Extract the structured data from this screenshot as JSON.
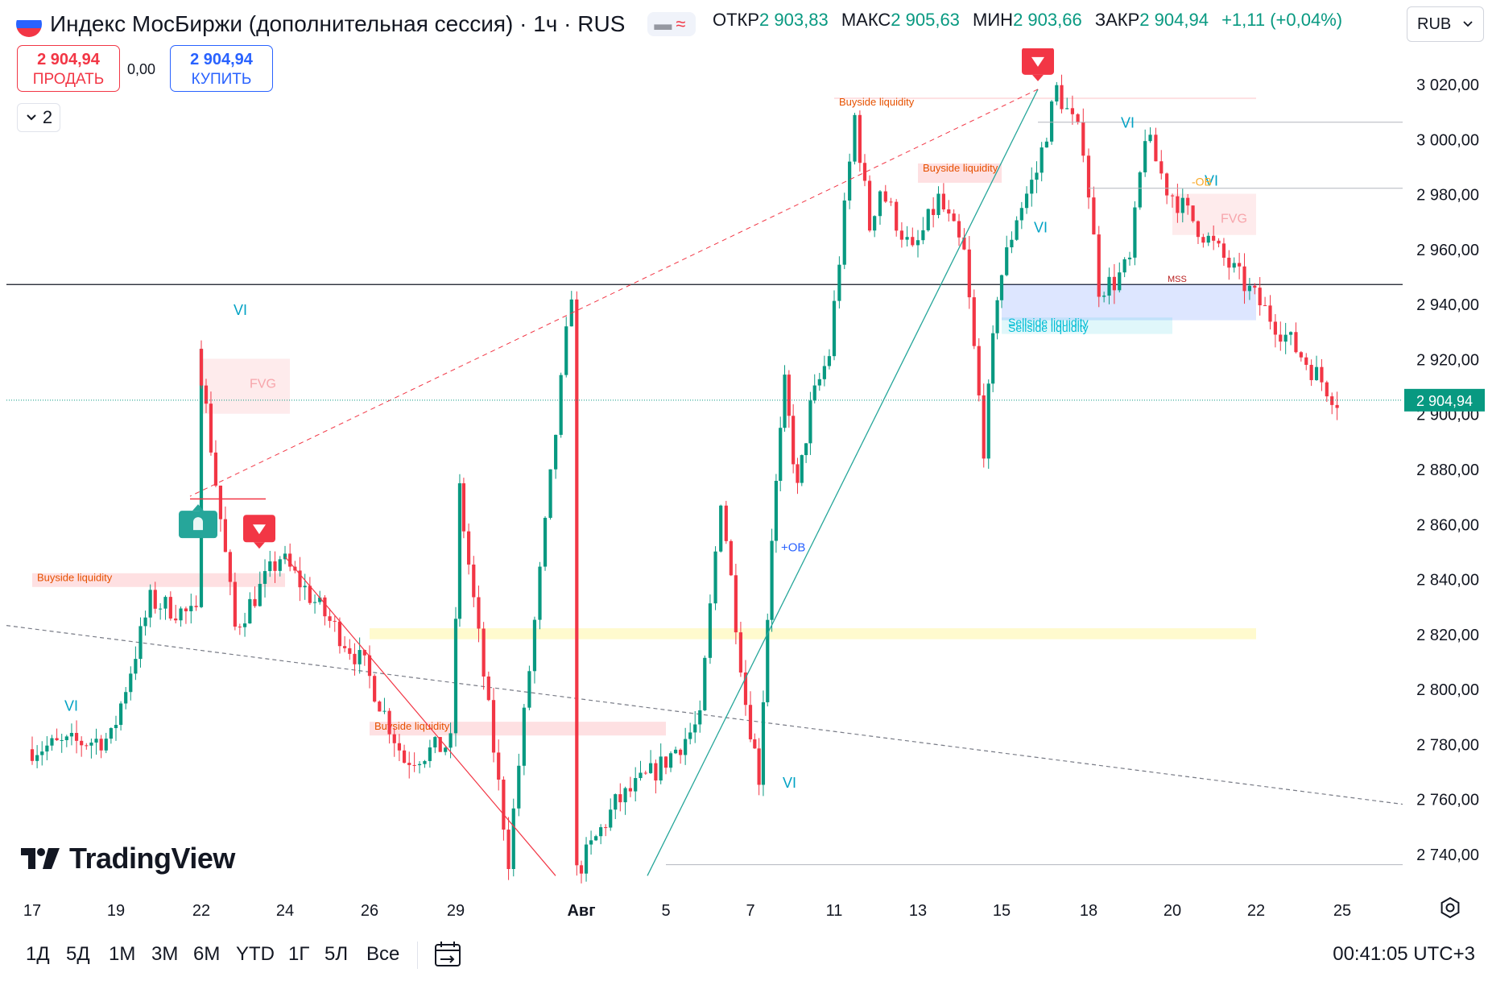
{
  "header": {
    "symbol_title": "Индекс МосБиржи (дополнительная сессия) · 1ч · RUS",
    "flag_colors": [
      "#ffffff",
      "#2962ff",
      "#f23645"
    ],
    "pill_icons": [
      "minus-icon",
      "wave-icon"
    ],
    "pill_glyphs": [
      "▬",
      "≈"
    ],
    "ohlc": {
      "open_label": "ОТКР",
      "open": "2 903,83",
      "high_label": "МАКС",
      "high": "2 905,63",
      "low_label": "МИН",
      "low": "2 903,66",
      "close_label": "ЗАКР",
      "close": "2 904,94",
      "change": "+1,11 (+0,04%)"
    },
    "currency": "RUB"
  },
  "trade": {
    "sell_price": "2 904,94",
    "sell_label": "ПРОДАТЬ",
    "spread": "0,00",
    "buy_price": "2 904,94",
    "buy_label": "КУПИТЬ"
  },
  "indicators_toggle": {
    "count": "2",
    "icon": "chevron-down-icon"
  },
  "logo": {
    "text": "TradingView"
  },
  "timeframes": [
    "1Д",
    "5Д",
    "1М",
    "3М",
    "6М",
    "YTD",
    "1Г",
    "5Л",
    "Все"
  ],
  "clock": "00:41:05 UTC+3",
  "colors": {
    "up": "#089981",
    "down": "#f23645",
    "price_line": "#089981",
    "trend": "#26a69a",
    "bearish_line": "#f23645",
    "buyside": "#f7525f",
    "fvg": "#f23645",
    "sellside": "#2962ff",
    "ob": "#ffeb3b"
  },
  "chart_data": {
    "type": "candlestick",
    "timeframe": "1ч",
    "x_axis_labels": [
      "17",
      "19",
      "22",
      "24",
      "26",
      "29",
      "Авг",
      "5",
      "7",
      "11",
      "13",
      "15",
      "18",
      "20",
      "22",
      "25"
    ],
    "y_axis_labels": [
      "3 020,00",
      "3 000,00",
      "2 980,00",
      "2 960,00",
      "2 940,00",
      "2 920,00",
      "2 900,00",
      "2 880,00",
      "2 860,00",
      "2 840,00",
      "2 820,00",
      "2 800,00",
      "2 780,00",
      "2 760,00",
      "2 740,00"
    ],
    "ylim": [
      2732,
      3032
    ],
    "last_price": 2904.94,
    "horizontal_level": 2947,
    "anchors": [
      [
        "17",
        2778
      ],
      [
        "19",
        2782
      ],
      [
        "19",
        2832
      ],
      [
        "22",
        2826
      ],
      [
        "22",
        2822
      ],
      [
        "24",
        2848
      ],
      [
        "26",
        2808
      ],
      [
        "26",
        2774
      ],
      [
        "29",
        2780
      ],
      [
        "29",
        2738
      ],
      [
        "Авг",
        2733
      ],
      [
        "Авг",
        2758
      ],
      [
        "5",
        2772
      ],
      [
        "5",
        2788
      ],
      [
        "7",
        2795
      ],
      [
        "7",
        2768
      ],
      [
        "7",
        2856
      ],
      [
        "7",
        2910
      ],
      [
        "7",
        2872
      ],
      [
        "7",
        2902
      ],
      [
        "11",
        2922
      ],
      [
        "11",
        3008
      ],
      [
        "11",
        2982
      ],
      [
        "13",
        2958
      ],
      [
        "13",
        2978
      ],
      [
        "13",
        2958
      ],
      [
        "15",
        2944
      ],
      [
        "15",
        2972
      ],
      [
        "15",
        2988
      ],
      [
        "15",
        3018
      ],
      [
        "18",
        2998
      ],
      [
        "18",
        2946
      ],
      [
        "18",
        2948
      ],
      [
        "18",
        2955
      ],
      [
        "18",
        3002
      ],
      [
        "20",
        2982
      ],
      [
        "20",
        2968
      ],
      [
        "20",
        2945
      ],
      [
        "22",
        2928
      ],
      [
        "22",
        2872
      ],
      [
        "22",
        2870
      ],
      [
        "22",
        2888
      ],
      [
        "25",
        2904.94
      ]
    ],
    "annotations": {
      "buyside_label": "Buyside liquidity",
      "sellside_label": "Sellside liquidity",
      "fvg_label": "FVG",
      "vi_label": "VI",
      "ob_bull_label": "+OB",
      "ob_bear_label": "-OB",
      "mss_label": "MSS",
      "buyside_zones": [
        {
          "from": "17",
          "to": "24",
          "y": [
            2837,
            2842
          ]
        },
        {
          "from": "26",
          "to": "5",
          "y": [
            2783,
            2788
          ]
        },
        {
          "from": "13",
          "to": "15",
          "y": [
            2984,
            2991
          ]
        },
        {
          "from": "11",
          "to": "22",
          "y": [
            3015,
            3015
          ]
        }
      ],
      "sellside_zones": [
        {
          "from": "15",
          "to": "22",
          "y": [
            2934,
            2947
          ]
        },
        {
          "from": "15",
          "to": "20",
          "y": [
            2929,
            2935
          ]
        }
      ],
      "fvg_zones": [
        {
          "from": "20",
          "to": "22",
          "y": [
            2965,
            2980
          ]
        },
        {
          "from": "22",
          "to": "22",
          "y": [
            2900,
            2920
          ]
        }
      ],
      "ob_zone": {
        "from": "26",
        "to": "22",
        "y": [
          2818,
          2822
        ]
      },
      "vi_marks": [
        [
          "17",
          2792
        ],
        [
          "7",
          2764
        ],
        [
          "18",
          3004
        ],
        [
          "15",
          2966
        ],
        [
          "20",
          2983
        ],
        [
          "22",
          2936
        ]
      ],
      "sell_signals": [
        [
          "24",
          2848
        ],
        [
          "15",
          3018
        ]
      ],
      "buy_signals": [
        [
          "22",
          2870
        ]
      ]
    }
  }
}
